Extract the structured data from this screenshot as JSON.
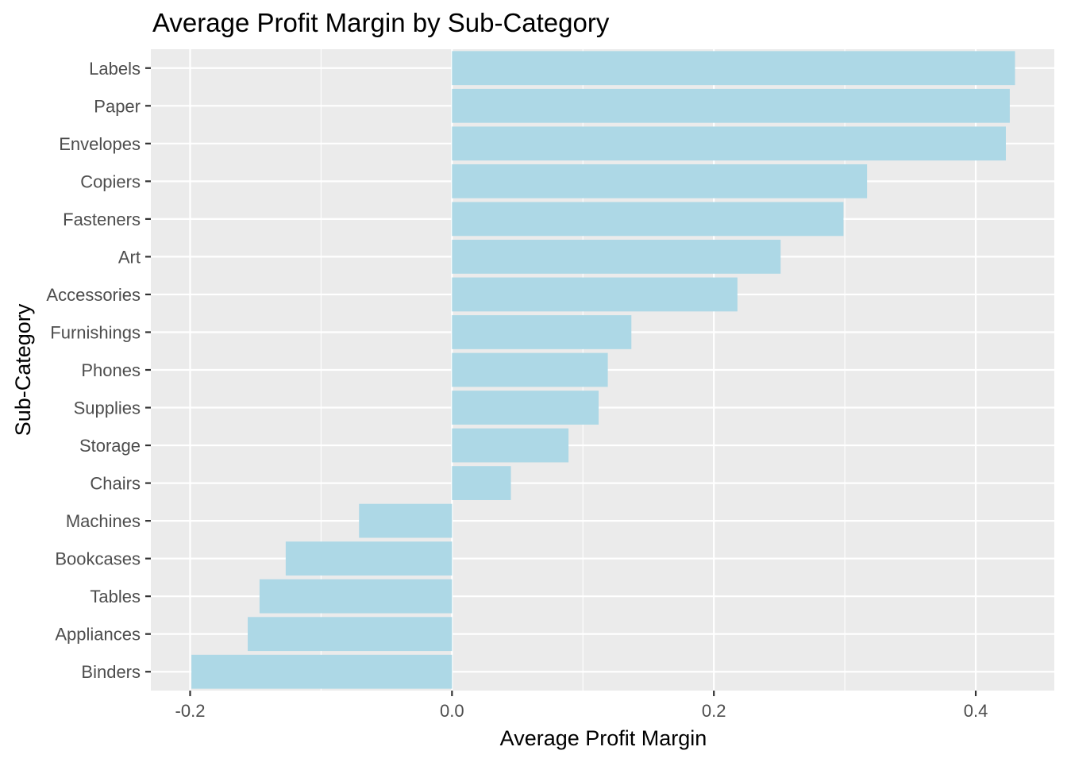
{
  "chart_data": {
    "type": "bar",
    "orientation": "horizontal",
    "title": "Average Profit Margin by Sub-Category",
    "xlabel": "Average Profit Margin",
    "ylabel": "Sub-Category",
    "categories": [
      "Labels",
      "Paper",
      "Envelopes",
      "Copiers",
      "Fasteners",
      "Art",
      "Accessories",
      "Furnishings",
      "Phones",
      "Supplies",
      "Storage",
      "Chairs",
      "Machines",
      "Bookcases",
      "Tables",
      "Appliances",
      "Binders"
    ],
    "values": [
      0.43,
      0.426,
      0.423,
      0.317,
      0.299,
      0.251,
      0.218,
      0.137,
      0.119,
      0.112,
      0.089,
      0.045,
      -0.071,
      -0.127,
      -0.147,
      -0.156,
      -0.199
    ],
    "xlim": [
      -0.23,
      0.46
    ],
    "x_ticks": [
      -0.2,
      0.0,
      0.2,
      0.4
    ],
    "x_tick_labels": [
      "-0.2",
      "0.0",
      "0.2",
      "0.4"
    ],
    "grid": true,
    "colors": {
      "bar": "#add8e6",
      "panel_background": "#ebebeb",
      "grid": "#ffffff"
    }
  }
}
